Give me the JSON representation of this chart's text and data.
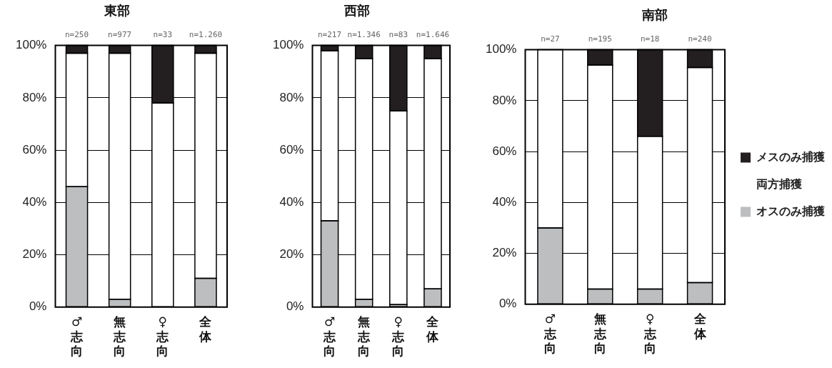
{
  "chart_data": [
    {
      "type": "bar",
      "stacked": true,
      "title": "東部",
      "categories": [
        "♂志向",
        "無志向",
        "♀志向",
        "全体"
      ],
      "series": [
        {
          "color": "#bcbec0",
          "values": [
            46,
            3,
            0,
            11
          ]
        },
        {
          "color": "#ffffff",
          "values": [
            51,
            94,
            78,
            86
          ]
        },
        {
          "color": "#231f20",
          "values": [
            3,
            3,
            22,
            3
          ]
        }
      ],
      "ylim": [
        0,
        100
      ],
      "yticks": [
        {
          "value": 0,
          "label": "0%"
        },
        {
          "value": 20,
          "label": "20%"
        },
        {
          "value": 40,
          "label": "40%"
        },
        {
          "value": 60,
          "label": "60%"
        },
        {
          "value": 80,
          "label": "80%"
        },
        {
          "value": 100,
          "label": "100%"
        }
      ],
      "grid": "y",
      "legend": false,
      "annotations": [
        "n=250",
        "n=977",
        "n=33",
        "n=1.260"
      ]
    },
    {
      "type": "bar",
      "stacked": true,
      "title": "西部",
      "categories": [
        "♂志向",
        "無志向",
        "♀志向",
        "全体"
      ],
      "series": [
        {
          "color": "#bcbec0",
          "values": [
            33,
            3,
            1,
            7
          ]
        },
        {
          "color": "#ffffff",
          "values": [
            65,
            92,
            74,
            88
          ]
        },
        {
          "color": "#231f20",
          "values": [
            2,
            5,
            25,
            5
          ]
        }
      ],
      "ylim": [
        0,
        100
      ],
      "yticks": [
        {
          "value": 0,
          "label": "0%"
        },
        {
          "value": 20,
          "label": "20%"
        },
        {
          "value": 40,
          "label": "40%"
        },
        {
          "value": 60,
          "label": "60%"
        },
        {
          "value": 80,
          "label": "80%"
        },
        {
          "value": 100,
          "label": "100%"
        }
      ],
      "grid": "y",
      "legend": false,
      "annotations": [
        "n=217",
        "n=1.346",
        "n=83",
        "n=1.646"
      ]
    },
    {
      "type": "bar",
      "stacked": true,
      "title": "南部",
      "categories": [
        "♂志向",
        "無志向",
        "♀志向",
        "全体"
      ],
      "series": [
        {
          "name": "オスのみ捕獲",
          "color": "#bcbec0",
          "values": [
            30,
            6,
            6,
            8.5
          ]
        },
        {
          "name": "両方捕獲",
          "color": "#ffffff",
          "values": [
            70,
            88,
            60,
            84.5
          ]
        },
        {
          "name": "メスのみ捕獲",
          "color": "#231f20",
          "values": [
            0,
            6,
            34,
            7
          ]
        }
      ],
      "ylim": [
        0,
        100
      ],
      "yticks": [
        {
          "value": 0,
          "label": "0%"
        },
        {
          "value": 20,
          "label": "20%"
        },
        {
          "value": 40,
          "label": "40%"
        },
        {
          "value": 60,
          "label": "60%"
        },
        {
          "value": 80,
          "label": "80%"
        },
        {
          "value": 100,
          "label": "100%"
        }
      ],
      "grid": "y",
      "legend": "right",
      "annotations": [
        "n=27",
        "n=195",
        "n=18",
        "n=240"
      ]
    }
  ]
}
